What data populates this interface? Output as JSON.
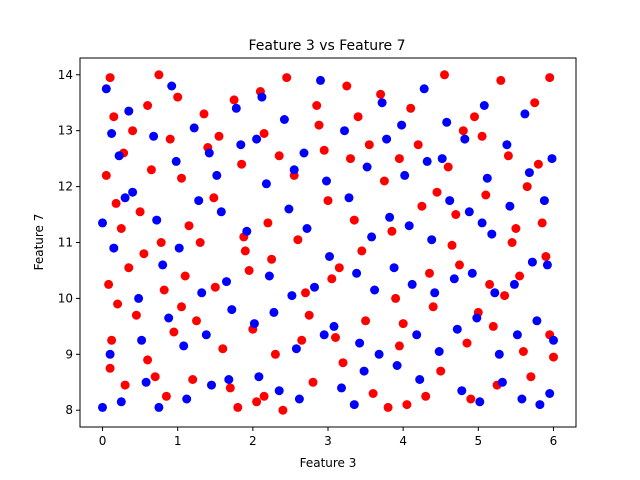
{
  "chart_data": {
    "type": "scatter",
    "title": "Feature 3 vs Feature 7",
    "xlabel": "Feature 3",
    "ylabel": "Feature 7",
    "xlim": [
      -0.3,
      6.3
    ],
    "ylim": [
      7.7,
      14.3
    ],
    "xticks": [
      0,
      1,
      2,
      3,
      4,
      5,
      6
    ],
    "yticks": [
      8,
      9,
      10,
      11,
      12,
      13,
      14
    ],
    "grid": false,
    "legend": "none",
    "series": [
      {
        "color": "#ff0000",
        "points": [
          [
            0.1,
            13.95
          ],
          [
            0.05,
            12.2
          ],
          [
            0.18,
            11.7
          ],
          [
            0.08,
            10.25
          ],
          [
            0.12,
            9.25
          ],
          [
            0.1,
            8.75
          ],
          [
            0.3,
            8.45
          ],
          [
            0.2,
            9.9
          ],
          [
            0.28,
            12.6
          ],
          [
            0.15,
            13.25
          ],
          [
            0.4,
            13.0
          ],
          [
            0.5,
            11.55
          ],
          [
            0.55,
            10.8
          ],
          [
            0.45,
            9.7
          ],
          [
            0.6,
            8.9
          ],
          [
            0.7,
            8.6
          ],
          [
            0.75,
            14.0
          ],
          [
            0.65,
            12.3
          ],
          [
            0.78,
            11.0
          ],
          [
            0.82,
            10.15
          ],
          [
            0.95,
            9.4
          ],
          [
            0.85,
            8.25
          ],
          [
            1.0,
            13.6
          ],
          [
            1.05,
            12.15
          ],
          [
            1.15,
            11.3
          ],
          [
            1.1,
            10.4
          ],
          [
            1.25,
            9.6
          ],
          [
            1.2,
            8.55
          ],
          [
            1.35,
            13.3
          ],
          [
            1.4,
            12.7
          ],
          [
            1.48,
            11.8
          ],
          [
            1.5,
            10.2
          ],
          [
            1.6,
            9.1
          ],
          [
            1.7,
            8.4
          ],
          [
            1.75,
            13.55
          ],
          [
            1.85,
            12.4
          ],
          [
            1.88,
            11.1
          ],
          [
            1.95,
            10.5
          ],
          [
            2.0,
            9.45
          ],
          [
            2.05,
            8.15
          ],
          [
            2.1,
            13.7
          ],
          [
            2.15,
            12.95
          ],
          [
            2.2,
            11.35
          ],
          [
            2.25,
            10.7
          ],
          [
            2.3,
            9.0
          ],
          [
            2.4,
            8.0
          ],
          [
            2.45,
            13.95
          ],
          [
            2.55,
            12.2
          ],
          [
            2.6,
            11.05
          ],
          [
            2.7,
            10.1
          ],
          [
            2.75,
            9.7
          ],
          [
            2.8,
            8.5
          ],
          [
            2.88,
            13.1
          ],
          [
            2.95,
            12.65
          ],
          [
            3.0,
            11.75
          ],
          [
            3.05,
            10.35
          ],
          [
            3.1,
            9.3
          ],
          [
            3.2,
            8.85
          ],
          [
            3.25,
            13.8
          ],
          [
            3.3,
            12.5
          ],
          [
            3.35,
            11.4
          ],
          [
            3.45,
            10.85
          ],
          [
            3.5,
            9.6
          ],
          [
            3.6,
            8.3
          ],
          [
            3.7,
            13.65
          ],
          [
            3.75,
            12.1
          ],
          [
            3.85,
            11.2
          ],
          [
            3.9,
            10.0
          ],
          [
            3.95,
            9.15
          ],
          [
            4.05,
            8.1
          ],
          [
            4.1,
            13.4
          ],
          [
            4.2,
            12.75
          ],
          [
            4.25,
            11.65
          ],
          [
            4.35,
            10.45
          ],
          [
            4.4,
            9.85
          ],
          [
            4.5,
            8.7
          ],
          [
            4.55,
            14.0
          ],
          [
            4.6,
            12.35
          ],
          [
            4.7,
            11.5
          ],
          [
            4.75,
            10.6
          ],
          [
            4.85,
            9.2
          ],
          [
            4.9,
            8.2
          ],
          [
            4.95,
            13.25
          ],
          [
            5.05,
            12.9
          ],
          [
            5.1,
            11.85
          ],
          [
            5.15,
            10.25
          ],
          [
            5.2,
            9.5
          ],
          [
            5.25,
            8.45
          ],
          [
            5.3,
            13.9
          ],
          [
            5.4,
            12.55
          ],
          [
            5.45,
            11.0
          ],
          [
            5.55,
            10.4
          ],
          [
            5.6,
            9.05
          ],
          [
            5.7,
            8.6
          ],
          [
            5.75,
            13.5
          ],
          [
            5.8,
            12.4
          ],
          [
            5.85,
            11.35
          ],
          [
            5.9,
            10.75
          ],
          [
            5.95,
            9.35
          ],
          [
            6.0,
            8.95
          ],
          [
            5.95,
            13.95
          ],
          [
            5.65,
            12.0
          ],
          [
            5.35,
            10.05
          ],
          [
            4.8,
            13.0
          ],
          [
            4.45,
            11.9
          ],
          [
            4.0,
            9.55
          ],
          [
            3.55,
            12.75
          ],
          [
            3.15,
            10.55
          ],
          [
            2.85,
            13.45
          ],
          [
            2.35,
            12.55
          ],
          [
            1.9,
            10.85
          ],
          [
            1.55,
            12.9
          ],
          [
            1.05,
            9.85
          ],
          [
            0.6,
            13.45
          ],
          [
            0.35,
            10.55
          ],
          [
            0.25,
            11.25
          ],
          [
            1.8,
            8.05
          ],
          [
            2.15,
            8.25
          ],
          [
            3.8,
            8.05
          ],
          [
            4.3,
            8.25
          ],
          [
            5.0,
            9.75
          ],
          [
            5.5,
            11.25
          ],
          [
            0.9,
            12.85
          ],
          [
            2.65,
            9.25
          ],
          [
            3.4,
            13.25
          ],
          [
            4.65,
            10.95
          ],
          [
            1.3,
            11.0
          ],
          [
            3.95,
            12.5
          ]
        ]
      },
      {
        "color": "#0000ff",
        "points": [
          [
            0.05,
            13.75
          ],
          [
            0.0,
            11.35
          ],
          [
            0.1,
            9.0
          ],
          [
            0.0,
            8.05
          ],
          [
            0.22,
            12.55
          ],
          [
            0.15,
            10.9
          ],
          [
            0.25,
            8.15
          ],
          [
            0.35,
            13.35
          ],
          [
            0.4,
            11.9
          ],
          [
            0.48,
            10.0
          ],
          [
            0.52,
            9.25
          ],
          [
            0.58,
            8.5
          ],
          [
            0.68,
            12.9
          ],
          [
            0.72,
            11.4
          ],
          [
            0.8,
            10.6
          ],
          [
            0.75,
            8.05
          ],
          [
            0.92,
            13.8
          ],
          [
            0.98,
            12.45
          ],
          [
            1.02,
            10.9
          ],
          [
            1.08,
            9.15
          ],
          [
            1.12,
            8.2
          ],
          [
            1.22,
            13.05
          ],
          [
            1.28,
            11.75
          ],
          [
            1.32,
            10.1
          ],
          [
            1.38,
            9.35
          ],
          [
            1.45,
            8.45
          ],
          [
            1.52,
            12.2
          ],
          [
            1.58,
            11.55
          ],
          [
            1.65,
            10.3
          ],
          [
            1.72,
            9.8
          ],
          [
            1.78,
            13.4
          ],
          [
            1.84,
            12.75
          ],
          [
            1.92,
            11.2
          ],
          [
            2.02,
            9.55
          ],
          [
            2.08,
            8.6
          ],
          [
            2.12,
            13.6
          ],
          [
            2.18,
            12.05
          ],
          [
            2.22,
            10.4
          ],
          [
            2.28,
            9.75
          ],
          [
            2.35,
            8.35
          ],
          [
            2.42,
            13.2
          ],
          [
            2.48,
            11.6
          ],
          [
            2.52,
            10.05
          ],
          [
            2.58,
            9.1
          ],
          [
            2.62,
            8.2
          ],
          [
            2.68,
            12.6
          ],
          [
            2.72,
            11.25
          ],
          [
            2.82,
            10.2
          ],
          [
            2.9,
            13.9
          ],
          [
            2.98,
            12.1
          ],
          [
            3.02,
            10.75
          ],
          [
            3.08,
            9.5
          ],
          [
            3.18,
            8.4
          ],
          [
            3.22,
            13.0
          ],
          [
            3.28,
            11.8
          ],
          [
            3.38,
            10.45
          ],
          [
            3.42,
            9.2
          ],
          [
            3.48,
            8.7
          ],
          [
            3.52,
            12.35
          ],
          [
            3.58,
            11.1
          ],
          [
            3.62,
            10.15
          ],
          [
            3.68,
            9.0
          ],
          [
            3.72,
            13.5
          ],
          [
            3.78,
            12.85
          ],
          [
            3.82,
            11.45
          ],
          [
            3.88,
            10.55
          ],
          [
            3.92,
            8.8
          ],
          [
            4.02,
            12.2
          ],
          [
            4.08,
            11.3
          ],
          [
            4.12,
            10.25
          ],
          [
            4.18,
            9.35
          ],
          [
            4.22,
            8.55
          ],
          [
            4.28,
            13.75
          ],
          [
            4.32,
            12.45
          ],
          [
            4.38,
            11.05
          ],
          [
            4.42,
            10.1
          ],
          [
            4.48,
            9.05
          ],
          [
            4.58,
            13.15
          ],
          [
            4.62,
            11.75
          ],
          [
            4.68,
            10.35
          ],
          [
            4.72,
            9.45
          ],
          [
            4.78,
            8.35
          ],
          [
            4.82,
            12.85
          ],
          [
            4.88,
            11.55
          ],
          [
            4.92,
            10.45
          ],
          [
            4.98,
            9.65
          ],
          [
            5.02,
            8.15
          ],
          [
            5.08,
            13.45
          ],
          [
            5.12,
            12.15
          ],
          [
            5.18,
            11.15
          ],
          [
            5.22,
            10.1
          ],
          [
            5.28,
            9.0
          ],
          [
            5.32,
            8.5
          ],
          [
            5.38,
            12.75
          ],
          [
            5.42,
            11.65
          ],
          [
            5.48,
            10.25
          ],
          [
            5.52,
            9.35
          ],
          [
            5.58,
            8.2
          ],
          [
            5.62,
            13.3
          ],
          [
            5.68,
            12.25
          ],
          [
            5.72,
            10.65
          ],
          [
            5.78,
            9.6
          ],
          [
            5.82,
            8.1
          ],
          [
            5.88,
            11.75
          ],
          [
            5.92,
            10.6
          ],
          [
            5.98,
            12.5
          ],
          [
            6.0,
            9.25
          ],
          [
            5.95,
            8.3
          ],
          [
            0.3,
            11.8
          ],
          [
            0.88,
            9.65
          ],
          [
            1.42,
            12.6
          ],
          [
            2.05,
            12.85
          ],
          [
            2.95,
            9.35
          ],
          [
            3.35,
            8.1
          ],
          [
            3.98,
            13.1
          ],
          [
            4.52,
            12.5
          ],
          [
            5.05,
            11.35
          ],
          [
            1.68,
            8.55
          ],
          [
            0.12,
            12.95
          ],
          [
            2.55,
            12.3
          ]
        ]
      }
    ]
  }
}
